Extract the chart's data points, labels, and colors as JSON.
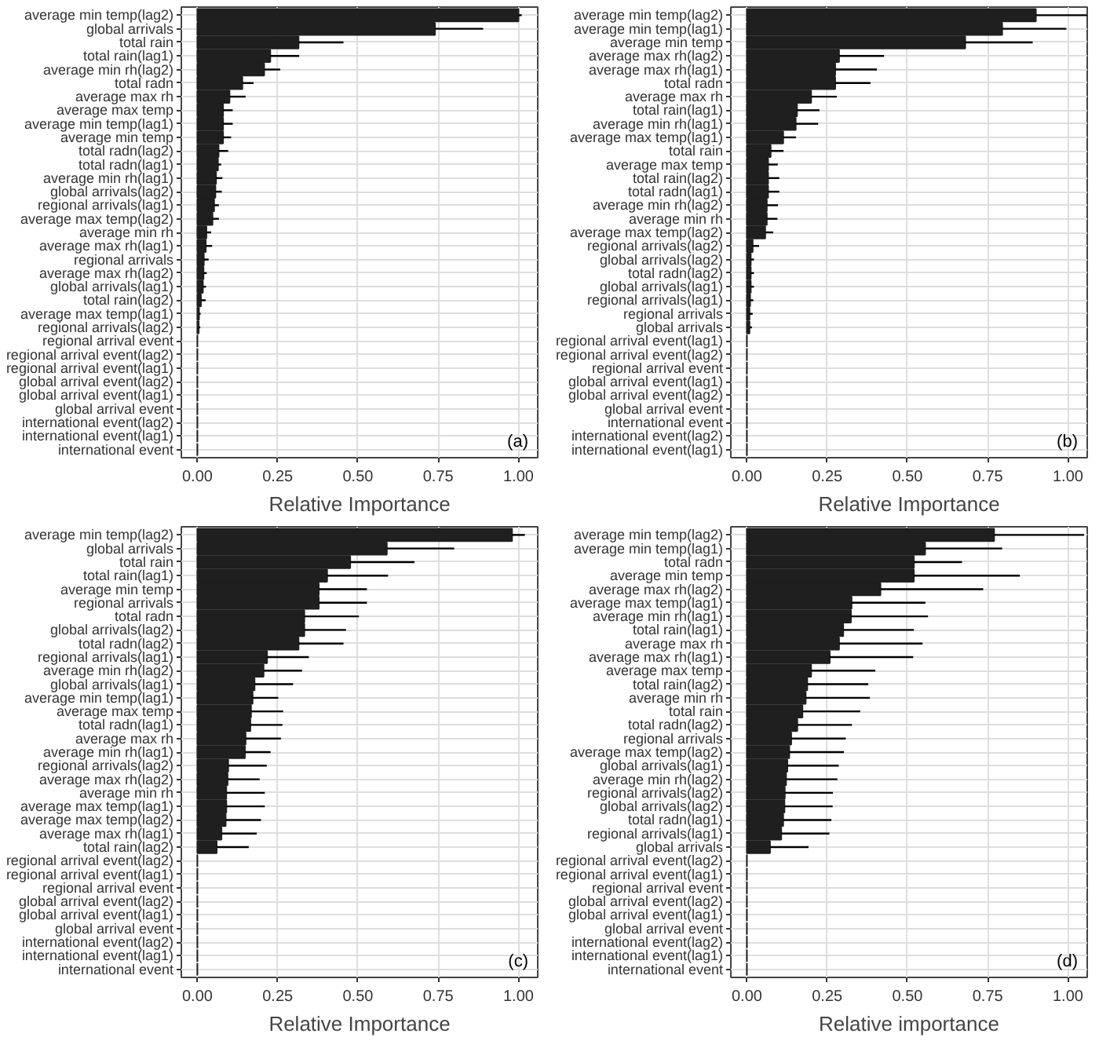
{
  "chart_data": [
    {
      "type": "bar",
      "orientation": "horizontal",
      "color": "#1f1f1f",
      "grid": true,
      "xlabel": "Relative Importance",
      "annotations": [
        "(a)"
      ],
      "xlim": [
        -0.05,
        1.06
      ],
      "xticks": [
        {
          "value": 0,
          "label": "0.00"
        },
        {
          "value": 0.25,
          "label": "0.25"
        },
        {
          "value": 0.5,
          "label": "0.50"
        },
        {
          "value": 0.75,
          "label": "0.75"
        },
        {
          "value": 1,
          "label": "1.00"
        }
      ],
      "categories": [
        "average min temp(lag2)",
        "global arrivals",
        "total rain",
        "total rain(lag1)",
        "average min rh(lag2)",
        "total radn",
        "average max rh",
        "average max temp",
        "average min temp(lag1)",
        "average min temp",
        "total radn(lag2)",
        "total radn(lag1)",
        "average min rh(lag1)",
        "global arrivals(lag2)",
        "regional arrivals(lag1)",
        "average max temp(lag2)",
        "average min rh",
        "average max rh(lag1)",
        "regional arrivals",
        "average max rh(lag2)",
        "global arrivals(lag1)",
        "total rain(lag2)",
        "average max temp(lag1)",
        "regional arrivals(lag2)",
        "regional arrival event",
        "regional arrival event(lag2)",
        "regional arrival event(lag1)",
        "global arrival event(lag2)",
        "global arrival event(lag1)",
        "global arrival event",
        "international event(lag2)",
        "international event(lag1)",
        "international event"
      ],
      "values": [
        1.0,
        0.74,
        0.315,
        0.227,
        0.208,
        0.14,
        0.1,
        0.08,
        0.08,
        0.08,
        0.066,
        0.064,
        0.058,
        0.056,
        0.052,
        0.047,
        0.028,
        0.026,
        0.02,
        0.019,
        0.017,
        0.011,
        0.005,
        0.004,
        0,
        0,
        0,
        0,
        0,
        0,
        0,
        0,
        0
      ],
      "errors": [
        [
          1.0,
          1.01
        ],
        [
          0.74,
          0.89
        ],
        [
          0.315,
          0.455
        ],
        [
          0.227,
          0.317
        ],
        [
          0.208,
          0.258
        ],
        [
          0.14,
          0.175
        ],
        [
          0.1,
          0.15
        ],
        [
          0.08,
          0.11
        ],
        [
          0.08,
          0.11
        ],
        [
          0.08,
          0.105
        ],
        [
          0.066,
          0.096
        ],
        [
          0.064,
          0.074
        ],
        [
          0.058,
          0.078
        ],
        [
          0.056,
          0.076
        ],
        [
          0.052,
          0.067
        ],
        [
          0.047,
          0.067
        ],
        [
          0.028,
          0.043
        ],
        [
          0.026,
          0.046
        ],
        [
          0.02,
          0.035
        ],
        [
          0.019,
          0.029
        ],
        [
          0.017,
          0.027
        ],
        [
          0.011,
          0.026
        ],
        [
          0.005,
          0.01
        ],
        [
          0.004,
          0.009
        ],
        null,
        null,
        null,
        null,
        null,
        null,
        null,
        null,
        null
      ]
    },
    {
      "type": "bar",
      "orientation": "horizontal",
      "color": "#1f1f1f",
      "grid": true,
      "xlabel": "Relative Importance",
      "annotations": [
        "(b)"
      ],
      "xlim": [
        -0.05,
        1.06
      ],
      "xticks": [
        {
          "value": 0,
          "label": "0.00"
        },
        {
          "value": 0.25,
          "label": "0.25"
        },
        {
          "value": 0.5,
          "label": "0.50"
        },
        {
          "value": 0.75,
          "label": "0.75"
        },
        {
          "value": 1,
          "label": "1.00"
        }
      ],
      "categories": [
        "average min temp(lag2)",
        "average min temp(lag1)",
        "average min temp",
        "average max rh(lag2)",
        "average max rh(lag1)",
        "total radn",
        "average max rh",
        "total rain(lag1)",
        "average min rh(lag1)",
        "average max temp(lag1)",
        "total rain",
        "average max temp",
        "total rain(lag2)",
        "total radn(lag1)",
        "average min rh(lag2)",
        "average min rh",
        "average max temp(lag2)",
        "regional arrivals(lag2)",
        "global arrivals(lag2)",
        "total radn(lag2)",
        "global arrivals(lag1)",
        "regional arrivals(lag1)",
        "regional arrivals",
        "global arrivals",
        "regional arrival event(lag1)",
        "regional arrival event(lag2)",
        "regional arrival event",
        "global arrival event(lag1)",
        "global arrival event(lag2)",
        "global arrival event",
        "international event",
        "international event(lag2)",
        "international event(lag1)"
      ],
      "values": [
        0.9,
        0.795,
        0.68,
        0.287,
        0.275,
        0.275,
        0.2,
        0.156,
        0.152,
        0.113,
        0.074,
        0.066,
        0.066,
        0.066,
        0.062,
        0.062,
        0.057,
        0.018,
        0.012,
        0.012,
        0.012,
        0.01,
        0.008,
        0.008,
        0,
        0,
        0,
        0,
        0,
        0,
        0,
        0,
        0
      ],
      "errors": [
        [
          0.9,
          1.06
        ],
        [
          0.795,
          0.995
        ],
        [
          0.68,
          0.89
        ],
        [
          0.287,
          0.427
        ],
        [
          0.275,
          0.405
        ],
        [
          0.275,
          0.385
        ],
        [
          0.2,
          0.28
        ],
        [
          0.156,
          0.226
        ],
        [
          0.152,
          0.222
        ],
        [
          0.113,
          0.153
        ],
        [
          0.074,
          0.114
        ],
        [
          0.066,
          0.096
        ],
        [
          0.066,
          0.101
        ],
        [
          0.066,
          0.101
        ],
        [
          0.062,
          0.097
        ],
        [
          0.062,
          0.095
        ],
        [
          0.057,
          0.082
        ],
        [
          0.018,
          0.038
        ],
        [
          0.012,
          0.022
        ],
        [
          0.012,
          0.022
        ],
        [
          0.012,
          0.022
        ],
        [
          0.01,
          0.02
        ],
        [
          0.008,
          0.018
        ],
        [
          0.008,
          0.016
        ],
        null,
        null,
        null,
        null,
        null,
        null,
        null,
        null,
        null
      ]
    },
    {
      "type": "bar",
      "orientation": "horizontal",
      "color": "#1f1f1f",
      "grid": true,
      "xlabel": "Relative Importance",
      "annotations": [
        "(c)"
      ],
      "xlim": [
        -0.05,
        1.06
      ],
      "xticks": [
        {
          "value": 0,
          "label": "0.00"
        },
        {
          "value": 0.25,
          "label": "0.25"
        },
        {
          "value": 0.5,
          "label": "0.50"
        },
        {
          "value": 0.75,
          "label": "0.75"
        },
        {
          "value": 1,
          "label": "1.00"
        }
      ],
      "categories": [
        "average min temp(lag2)",
        "global arrivals",
        "total rain",
        "total rain(lag1)",
        "average min temp",
        "regional arrivals",
        "total radn",
        "global arrivals(lag2)",
        "total radn(lag2)",
        "regional arrivals(lag1)",
        "average min rh(lag2)",
        "global arrivals(lag1)",
        "average min temp(lag1)",
        "average max temp",
        "total radn(lag1)",
        "average max rh",
        "average min rh(lag1)",
        "regional arrivals(lag2)",
        "average max rh(lag2)",
        "average min rh",
        "average max temp(lag1)",
        "average max temp(lag2)",
        "average max rh(lag1)",
        "total rain(lag2)",
        "regional arrival event(lag2)",
        "regional arrival event(lag1)",
        "regional arrival event",
        "global arrival event(lag2)",
        "global arrival event(lag1)",
        "global arrival event",
        "international event(lag2)",
        "international event(lag1)",
        "international event"
      ],
      "values": [
        0.98,
        0.59,
        0.476,
        0.404,
        0.378,
        0.378,
        0.333,
        0.333,
        0.315,
        0.217,
        0.206,
        0.178,
        0.172,
        0.167,
        0.165,
        0.15,
        0.148,
        0.096,
        0.094,
        0.09,
        0.09,
        0.088,
        0.075,
        0.06,
        0,
        0,
        0,
        0,
        0,
        0,
        0,
        0,
        0
      ],
      "errors": [
        [
          0.98,
          1.02
        ],
        [
          0.59,
          0.8
        ],
        [
          0.476,
          0.676
        ],
        [
          0.404,
          0.594
        ],
        [
          0.378,
          0.528
        ],
        [
          0.378,
          0.528
        ],
        [
          0.333,
          0.503
        ],
        [
          0.333,
          0.463
        ],
        [
          0.315,
          0.455
        ],
        [
          0.217,
          0.347
        ],
        [
          0.206,
          0.326
        ],
        [
          0.178,
          0.298
        ],
        [
          0.172,
          0.252
        ],
        [
          0.167,
          0.267
        ],
        [
          0.165,
          0.265
        ],
        [
          0.15,
          0.26
        ],
        [
          0.148,
          0.228
        ],
        [
          0.096,
          0.216
        ],
        [
          0.094,
          0.194
        ],
        [
          0.09,
          0.21
        ],
        [
          0.09,
          0.21
        ],
        [
          0.088,
          0.198
        ],
        [
          0.075,
          0.185
        ],
        [
          0.06,
          0.16
        ],
        null,
        null,
        null,
        null,
        null,
        null,
        null,
        null,
        null
      ]
    },
    {
      "type": "bar",
      "orientation": "horizontal",
      "color": "#1f1f1f",
      "grid": true,
      "xlabel": "Relative importance",
      "annotations": [
        "(d)"
      ],
      "xlim": [
        -0.05,
        1.06
      ],
      "xticks": [
        {
          "value": 0,
          "label": "0.00"
        },
        {
          "value": 0.25,
          "label": "0.25"
        },
        {
          "value": 0.5,
          "label": "0.50"
        },
        {
          "value": 0.75,
          "label": "0.75"
        },
        {
          "value": 1,
          "label": "1.00"
        }
      ],
      "categories": [
        "average min temp(lag2)",
        "average min temp(lag1)",
        "total radn",
        "average min temp",
        "average max rh(lag2)",
        "average max temp(lag1)",
        "average min rh(lag1)",
        "total rain(lag1)",
        "average max rh",
        "average max rh(lag1)",
        "average max temp",
        "total rain(lag2)",
        "average min rh",
        "total rain",
        "total radn(lag2)",
        "regional arrivals",
        "average max temp(lag2)",
        "global arrivals(lag1)",
        "average min rh(lag2)",
        "regional arrivals(lag2)",
        "global arrivals(lag2)",
        "total radn(lag1)",
        "regional arrivals(lag1)",
        "global arrivals",
        "regional arrival event(lag2)",
        "regional arrival event(lag1)",
        "regional arrival event",
        "global arrival event(lag2)",
        "global arrival event(lag1)",
        "global arrival event",
        "international event(lag2)",
        "international event(lag1)",
        "international event"
      ],
      "values": [
        0.77,
        0.555,
        0.52,
        0.52,
        0.416,
        0.326,
        0.324,
        0.3,
        0.287,
        0.258,
        0.2,
        0.188,
        0.183,
        0.173,
        0.157,
        0.138,
        0.132,
        0.126,
        0.122,
        0.118,
        0.117,
        0.113,
        0.107,
        0.072,
        0,
        0,
        0,
        0,
        0,
        0,
        0,
        0,
        0
      ],
      "errors": [
        [
          0.77,
          1.05
        ],
        [
          0.555,
          0.795
        ],
        [
          0.52,
          0.67
        ],
        [
          0.52,
          0.85
        ],
        [
          0.416,
          0.736
        ],
        [
          0.326,
          0.556
        ],
        [
          0.324,
          0.564
        ],
        [
          0.3,
          0.52
        ],
        [
          0.287,
          0.547
        ],
        [
          0.258,
          0.518
        ],
        [
          0.2,
          0.4
        ],
        [
          0.188,
          0.378
        ],
        [
          0.183,
          0.383
        ],
        [
          0.173,
          0.353
        ],
        [
          0.157,
          0.327
        ],
        [
          0.138,
          0.308
        ],
        [
          0.132,
          0.302
        ],
        [
          0.126,
          0.286
        ],
        [
          0.122,
          0.282
        ],
        [
          0.118,
          0.268
        ],
        [
          0.117,
          0.267
        ],
        [
          0.113,
          0.263
        ],
        [
          0.107,
          0.257
        ],
        [
          0.072,
          0.192
        ],
        null,
        null,
        null,
        null,
        null,
        null,
        null,
        null,
        null
      ]
    }
  ]
}
